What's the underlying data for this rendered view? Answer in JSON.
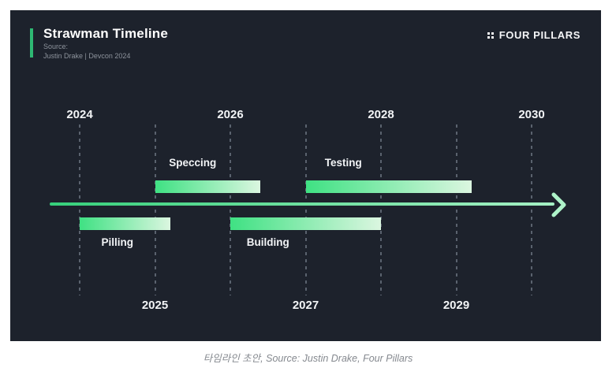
{
  "header": {
    "title": "Strawman Timeline",
    "source_label": "Source:",
    "source_value": "Justin Drake | Devcon 2024",
    "brand": "FOUR PILLARS"
  },
  "page": {
    "caption": "타임라인 초안, Source: Justin Drake, Four Pillars"
  },
  "colors": {
    "card_bg": "#1d222c",
    "accent_green": "#2eb873",
    "bar_gradient_start": "#3fe183",
    "bar_gradient_end": "#dbf6e0",
    "line_gradient_start": "#36d07b",
    "line_gradient_end": "#a5f0c4",
    "arrow_head": "#aef3c9",
    "gridline": "#5a626e",
    "year_label": "#f2f4f6"
  },
  "chart_data": {
    "type": "timeline",
    "title": "Strawman Timeline",
    "source": "Justin Drake | Devcon 2024",
    "axis": {
      "start_year": 2024,
      "end_year": 2030,
      "ticks_top": [
        2024,
        2026,
        2028,
        2030
      ],
      "ticks_bottom": [
        2025,
        2027,
        2029
      ],
      "gridlines": [
        2024,
        2025,
        2026,
        2027,
        2028,
        2029,
        2030
      ],
      "grid": "dashed-vertical"
    },
    "bars": [
      {
        "label": "Speccing",
        "start": 2025,
        "end": 2026.4,
        "row": "above",
        "label_position": "above"
      },
      {
        "label": "Testing",
        "start": 2027,
        "end": 2029.2,
        "row": "above",
        "label_position": "above"
      },
      {
        "label": "Pilling",
        "start": 2024,
        "end": 2025.2,
        "row": "below",
        "label_position": "below"
      },
      {
        "label": "Building",
        "start": 2026,
        "end": 2028,
        "row": "below",
        "label_position": "below"
      }
    ],
    "arrow": {
      "start_year": 2023.6,
      "end_year": 2030.3,
      "direction": "right"
    }
  }
}
